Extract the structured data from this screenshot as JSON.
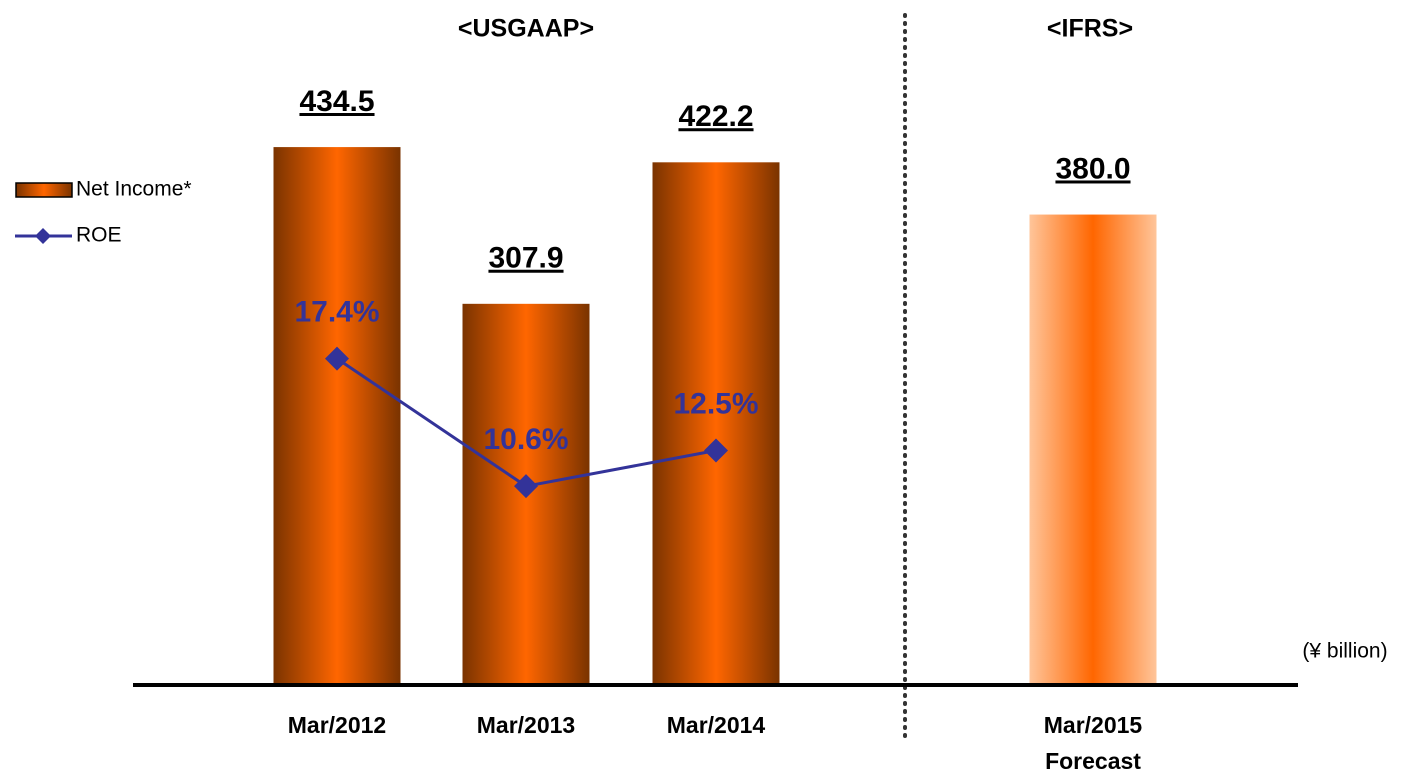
{
  "chart_data": {
    "type": "bar",
    "headers": [
      "<USGAAP>",
      "<IFRS>"
    ],
    "unit_label": "(¥ billion)",
    "categories": [
      "Mar/2012",
      "Mar/2013",
      "Mar/2014",
      "Mar/2015\nForecast"
    ],
    "series": [
      {
        "name": "Net Income*",
        "type": "bar",
        "color": "#ff6600",
        "edge_colors": [
          "#7a3300",
          "#7a3300",
          "#7a3300",
          "#ffc59a"
        ],
        "values": [
          434.5,
          307.9,
          422.2,
          380.0
        ],
        "value_labels": [
          "434.5",
          "307.9",
          "422.2",
          "380.0"
        ]
      },
      {
        "name": "ROE",
        "type": "line",
        "axis": "y2",
        "color": "#333399",
        "values": [
          17.4,
          10.6,
          12.5,
          null
        ],
        "value_labels": [
          "17.4%",
          "10.6%",
          "12.5%",
          null
        ]
      }
    ],
    "ylim": [
      0,
      500
    ],
    "y2lim": [
      0,
      33
    ]
  }
}
